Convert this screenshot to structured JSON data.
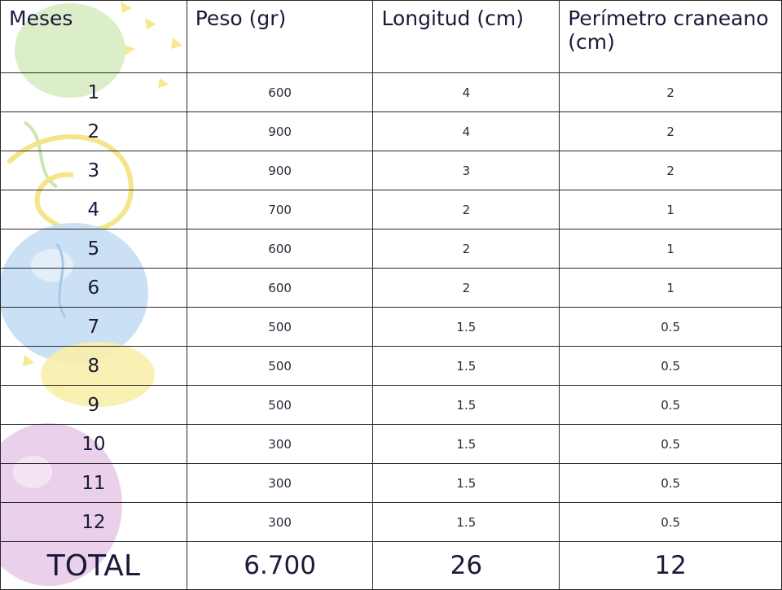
{
  "table": {
    "headers": [
      "Meses",
      "Peso (gr)",
      "Longitud (cm)",
      "Perímetro craneano (cm)"
    ],
    "rows": [
      {
        "mes": "1",
        "peso": "600",
        "longitud": "4",
        "perimetro": "2"
      },
      {
        "mes": "2",
        "peso": "900",
        "longitud": "4",
        "perimetro": "2"
      },
      {
        "mes": "3",
        "peso": "900",
        "longitud": "3",
        "perimetro": "2"
      },
      {
        "mes": "4",
        "peso": "700",
        "longitud": "2",
        "perimetro": "1"
      },
      {
        "mes": "5",
        "peso": "600",
        "longitud": "2",
        "perimetro": "1"
      },
      {
        "mes": "6",
        "peso": "600",
        "longitud": "2",
        "perimetro": "1"
      },
      {
        "mes": "7",
        "peso": "500",
        "longitud": "1.5",
        "perimetro": "0.5"
      },
      {
        "mes": "8",
        "peso": "500",
        "longitud": "1.5",
        "perimetro": "0.5"
      },
      {
        "mes": "9",
        "peso": "500",
        "longitud": "1.5",
        "perimetro": "0.5"
      },
      {
        "mes": "10",
        "peso": "300",
        "longitud": "1.5",
        "perimetro": "0.5"
      },
      {
        "mes": "11",
        "peso": "300",
        "longitud": "1.5",
        "perimetro": "0.5"
      },
      {
        "mes": "12",
        "peso": "300",
        "longitud": "1.5",
        "perimetro": "0.5"
      }
    ],
    "total": {
      "label": "TOTAL",
      "peso": "6.700",
      "longitud": "26",
      "perimetro": "12"
    }
  },
  "colors": {
    "background": "#ffffff",
    "border": "#2a2a2a",
    "text": "#1a1a3a",
    "balloon_blue": "#b9d6f0",
    "balloon_yellow": "#f7efa0",
    "balloon_pink": "#e6c6e6",
    "balloon_green": "#cfe8b8"
  }
}
